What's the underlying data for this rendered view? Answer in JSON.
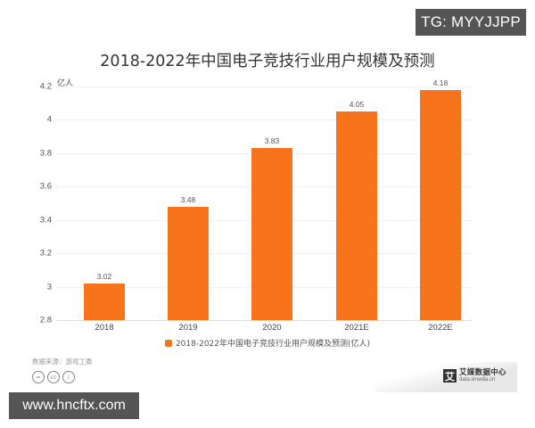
{
  "watermarks": {
    "top": "TG: MYYJJPP",
    "bottom": "www.hncftx.com"
  },
  "chart_data": {
    "type": "bar",
    "title": "2018-2022年中国电子竞技行业用户规模及预测",
    "ylabel": "亿人",
    "xlabel": "",
    "categories": [
      "2018",
      "2019",
      "2020",
      "2021E",
      "2022E"
    ],
    "values": [
      3.02,
      3.48,
      3.83,
      4.05,
      4.18
    ],
    "series": [
      {
        "name": "2018-2022年中国电子竞技行业用户规模及预测(亿人)",
        "values": [
          3.02,
          3.48,
          3.83,
          4.05,
          4.18
        ],
        "color": "#f7731c"
      }
    ],
    "ylim": [
      2.8,
      4.2
    ],
    "yticks": [
      "4.2",
      "4",
      "3.8",
      "3.6",
      "3.4",
      "3.2",
      "3",
      "2.8"
    ],
    "grid": true,
    "legend_position": "bottom",
    "data_labels": [
      "3.02",
      "3.48",
      "3.83",
      "4.05",
      "4.18"
    ]
  },
  "footer": {
    "source": "数据来源：游戏工委",
    "license_icons": [
      "=",
      "cc",
      "i"
    ],
    "logo_name": "艾媒数据中心",
    "logo_url": "data.iimedia.cn",
    "logo_mark": "艾"
  }
}
